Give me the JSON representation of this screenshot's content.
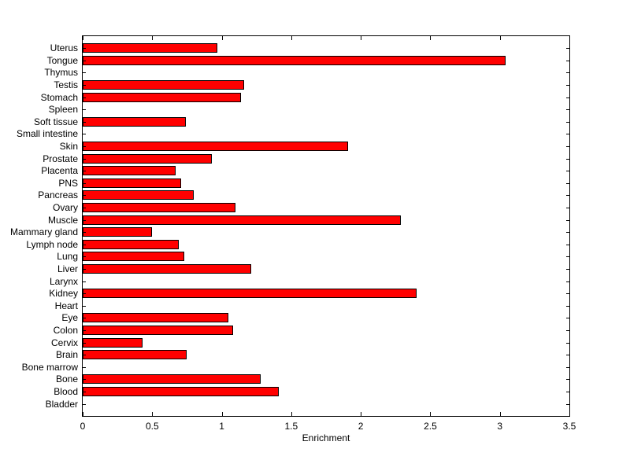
{
  "figure": {
    "background_color": "#ffffff",
    "axes_color": "#000000",
    "text_color": "#000000"
  },
  "chart_data": {
    "type": "bar",
    "orientation": "horizontal",
    "title": "",
    "xlabel": "Enrichment",
    "ylabel": "",
    "xlim": [
      0,
      3.5
    ],
    "xticks": [
      0,
      0.5,
      1,
      1.5,
      2,
      2.5,
      3,
      3.5
    ],
    "xtick_labels": [
      "0",
      "0.5",
      "1",
      "1.5",
      "2",
      "2.5",
      "3",
      "3.5"
    ],
    "grid": false,
    "legend": "none",
    "bar_color": "#ff0000",
    "bar_edge_color": "#000000",
    "categories_top_to_bottom": [
      "Uterus",
      "Tongue",
      "Thymus",
      "Testis",
      "Stomach",
      "Spleen",
      "Soft tissue",
      "Small intestine",
      "Skin",
      "Prostate",
      "Placenta",
      "PNS",
      "Pancreas",
      "Ovary",
      "Muscle",
      "Mammary gland",
      "Lymph node",
      "Lung",
      "Liver",
      "Larynx",
      "Kidney",
      "Heart",
      "Eye",
      "Colon",
      "Cervix",
      "Brain",
      "Bone marrow",
      "Bone",
      "Blood",
      "Bladder"
    ],
    "values_top_to_bottom": [
      0.97,
      3.04,
      0,
      1.16,
      1.14,
      0,
      0.74,
      0,
      1.91,
      0.93,
      0.67,
      0.71,
      0.8,
      1.1,
      2.29,
      0.5,
      0.69,
      0.73,
      1.21,
      0,
      2.4,
      0,
      1.05,
      1.08,
      0.43,
      0.75,
      0,
      1.28,
      1.41,
      0
    ]
  }
}
